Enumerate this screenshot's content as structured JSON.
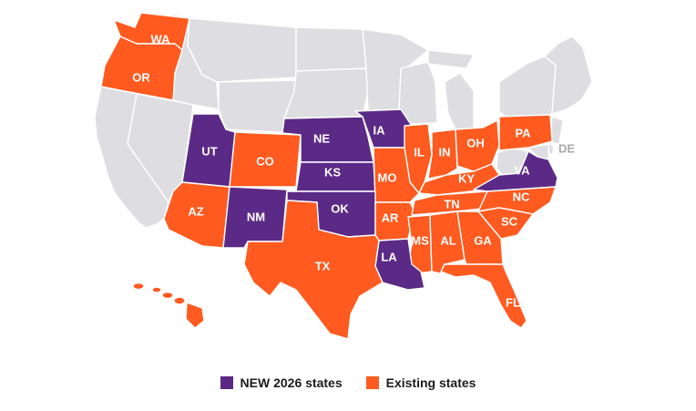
{
  "colors": {
    "new": "#5b2a86",
    "existing": "#ff5a1f",
    "other": "#dedee2"
  },
  "legend": [
    {
      "label": "NEW 2026 states",
      "status": "new"
    },
    {
      "label": "Existing states",
      "status": "existing"
    }
  ],
  "states": [
    {
      "abbr": "WA",
      "status": "existing"
    },
    {
      "abbr": "OR",
      "status": "existing"
    },
    {
      "abbr": "UT",
      "status": "new"
    },
    {
      "abbr": "CO",
      "status": "existing"
    },
    {
      "abbr": "NE",
      "status": "new"
    },
    {
      "abbr": "IA",
      "status": "new"
    },
    {
      "abbr": "KS",
      "status": "new"
    },
    {
      "abbr": "IL",
      "status": "existing"
    },
    {
      "abbr": "IN",
      "status": "existing"
    },
    {
      "abbr": "OH",
      "status": "existing"
    },
    {
      "abbr": "PA",
      "status": "existing"
    },
    {
      "abbr": "DE",
      "status": "other"
    },
    {
      "abbr": "MO",
      "status": "existing"
    },
    {
      "abbr": "KY",
      "status": "existing"
    },
    {
      "abbr": "VA",
      "status": "new"
    },
    {
      "abbr": "AZ",
      "status": "existing"
    },
    {
      "abbr": "NM",
      "status": "new"
    },
    {
      "abbr": "OK",
      "status": "new"
    },
    {
      "abbr": "AR",
      "status": "existing"
    },
    {
      "abbr": "TN",
      "status": "existing"
    },
    {
      "abbr": "NC",
      "status": "existing"
    },
    {
      "abbr": "SC",
      "status": "existing"
    },
    {
      "abbr": "MS",
      "status": "existing"
    },
    {
      "abbr": "AL",
      "status": "existing"
    },
    {
      "abbr": "GA",
      "status": "existing"
    },
    {
      "abbr": "LA",
      "status": "new"
    },
    {
      "abbr": "TX",
      "status": "existing"
    },
    {
      "abbr": "FL",
      "status": "existing"
    },
    {
      "abbr": "HI",
      "status": "existing"
    }
  ]
}
